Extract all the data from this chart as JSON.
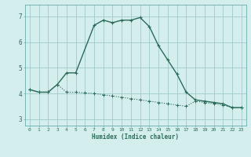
{
  "xlabel": "Humidex (Indice chaleur)",
  "bg_color": "#d4eeee",
  "line_color": "#2a6b5a",
  "grid_color": "#a0c8c8",
  "spine_color": "#6aadad",
  "xlim": [
    -0.5,
    23.5
  ],
  "ylim": [
    2.75,
    7.45
  ],
  "yticks": [
    3,
    4,
    5,
    6,
    7
  ],
  "xticks": [
    0,
    1,
    2,
    3,
    4,
    5,
    6,
    7,
    8,
    9,
    10,
    11,
    12,
    13,
    14,
    15,
    16,
    17,
    18,
    19,
    20,
    21,
    22,
    23
  ],
  "line1_x": [
    0,
    1,
    2,
    3,
    4,
    5,
    7,
    8,
    9,
    10,
    11,
    12,
    13,
    14,
    15,
    16,
    17,
    18,
    19,
    20,
    21,
    22,
    23
  ],
  "line1_y": [
    4.15,
    4.05,
    4.05,
    4.35,
    4.8,
    4.8,
    6.65,
    6.85,
    6.75,
    6.85,
    6.85,
    6.95,
    6.6,
    5.85,
    5.3,
    4.75,
    4.05,
    3.75,
    3.7,
    3.65,
    3.6,
    3.45,
    3.45
  ],
  "line2_x": [
    0,
    1,
    2,
    3,
    4,
    5,
    6,
    7,
    8,
    9,
    10,
    11,
    12,
    13,
    14,
    15,
    16,
    17,
    18,
    19,
    20,
    21,
    22,
    23
  ],
  "line2_y": [
    4.15,
    4.05,
    4.05,
    4.35,
    4.05,
    4.05,
    4.02,
    4.0,
    3.95,
    3.9,
    3.85,
    3.8,
    3.75,
    3.7,
    3.65,
    3.6,
    3.55,
    3.5,
    3.7,
    3.65,
    3.6,
    3.55,
    3.45,
    3.45
  ]
}
